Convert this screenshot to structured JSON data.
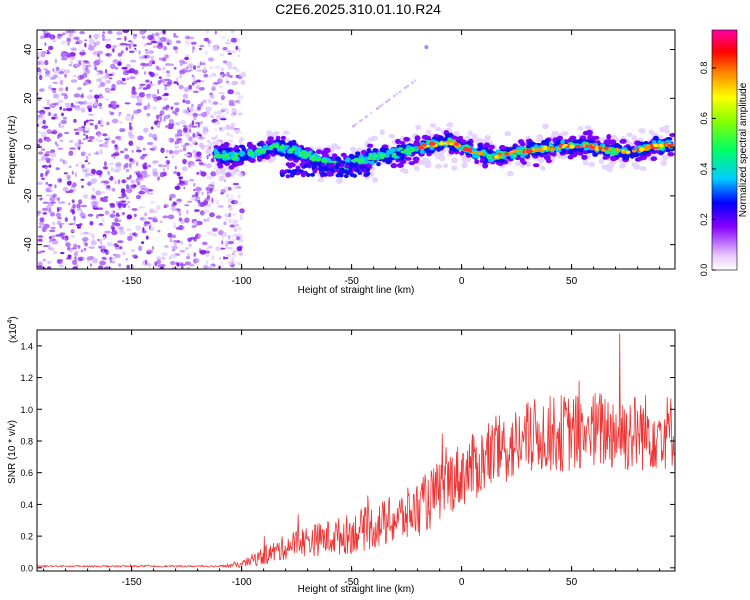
{
  "figure": {
    "title": "C2E6.2025.310.01.10.R24"
  },
  "colors": {
    "background": "#ffffff",
    "axis": "#000000",
    "snr_line": "#ee3333",
    "scatter_noise": "#8a2be2"
  },
  "chart_data": [
    {
      "type": "heatmap",
      "name": "spectrogram",
      "title": "C2E6.2025.310.01.10.R24",
      "xlabel": "Height of straight line (km)",
      "ylabel": "Frequency (Hz)",
      "xlim": [
        -193,
        97
      ],
      "ylim": [
        -50,
        48
      ],
      "xticks": [
        -150,
        -100,
        -50,
        0,
        50
      ],
      "yticks": [
        40,
        20,
        0,
        -20,
        -40
      ],
      "noise_region_km": [
        -193,
        -105
      ],
      "ridge": {
        "x": [
          -115,
          -105,
          -95,
          -85,
          -75,
          -65,
          -55,
          -45,
          -35,
          -25,
          -15,
          -5,
          5,
          15,
          25,
          35,
          45,
          55,
          65,
          75,
          85,
          95
        ],
        "y": [
          -2,
          -4,
          -3,
          0,
          -2,
          -5,
          -8,
          -5,
          -3,
          -2,
          1,
          2,
          -2,
          -4,
          -2,
          -1,
          0,
          1,
          -1,
          -2,
          0,
          1
        ]
      },
      "colorbar": {
        "label": "Normalized spectral amplitude",
        "range": [
          0,
          0.95
        ],
        "ticks": [
          "0.0",
          "0.2",
          "0.4",
          "0.6",
          "0.8"
        ],
        "tick_values": [
          0.0,
          0.2,
          0.4,
          0.6,
          0.8
        ]
      }
    },
    {
      "type": "line",
      "name": "snr",
      "xlabel": "Height of straight line (km)",
      "ylabel": "SNR (10 * v/v)",
      "scale_label": "(x10",
      "scale_exponent": "4",
      "xlim": [
        -193,
        97
      ],
      "ylim": [
        -0.02,
        1.5
      ],
      "xticks": [
        -150,
        -100,
        -50,
        0,
        50
      ],
      "yticks": [
        "0.0",
        "0.2",
        "0.4",
        "0.6",
        "0.8",
        "1.0",
        "1.2",
        "1.4"
      ],
      "ytick_values": [
        0.0,
        0.2,
        0.4,
        0.6,
        0.8,
        1.0,
        1.2,
        1.4
      ],
      "trend": {
        "x": [
          -193,
          -110,
          -100,
          -95,
          -85,
          -75,
          -65,
          -55,
          -45,
          -35,
          -25,
          -15,
          -5,
          5,
          15,
          25,
          35,
          45,
          55,
          65,
          75,
          85,
          97
        ],
        "y": [
          0.01,
          0.01,
          0.02,
          0.05,
          0.1,
          0.16,
          0.18,
          0.2,
          0.24,
          0.28,
          0.33,
          0.42,
          0.55,
          0.63,
          0.72,
          0.78,
          0.84,
          0.85,
          0.85,
          0.87,
          0.85,
          0.86,
          0.86
        ]
      },
      "spread": {
        "x": [
          -193,
          -110,
          -100,
          -90,
          -70,
          -50,
          -30,
          -10,
          10,
          30,
          50,
          70,
          97
        ],
        "y": [
          0.005,
          0.005,
          0.02,
          0.06,
          0.1,
          0.13,
          0.16,
          0.2,
          0.22,
          0.24,
          0.25,
          0.26,
          0.24
        ]
      },
      "peak": {
        "x": 72,
        "y": 1.48
      }
    }
  ]
}
